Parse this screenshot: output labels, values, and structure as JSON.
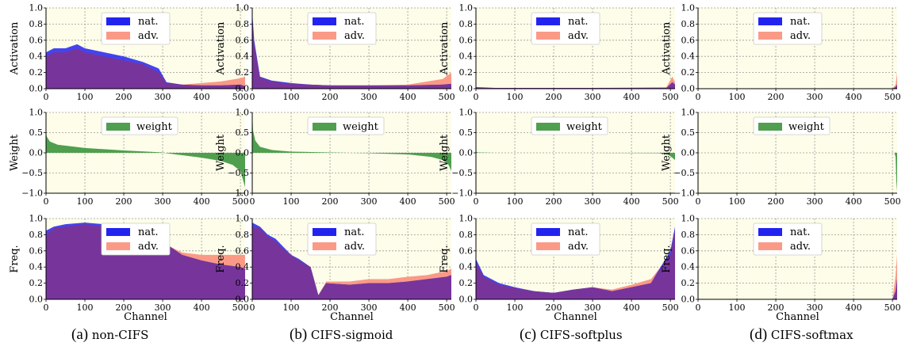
{
  "colors": {
    "plot_bg": "#fdfde9",
    "grid": "#9a9a9a",
    "nat": "#2323f0",
    "adv": "#fa9a86",
    "overlap": "#7d3594",
    "weight": "#4f9f4f"
  },
  "labels": {
    "activation": "Activation",
    "weight": "Weight",
    "freq": "Freq.",
    "channel": "Channel",
    "nat": "nat.",
    "adv": "adv.",
    "weight_legend": "weight"
  },
  "captions": [
    {
      "tag": "(a)",
      "name": "non-CIFS"
    },
    {
      "tag": "(b)",
      "name": "CIFS-sigmoid"
    },
    {
      "tag": "(c)",
      "name": "CIFS-softplus"
    },
    {
      "tag": "(d)",
      "name": "CIFS-softmax"
    }
  ],
  "chart_data": [
    {
      "type": "area",
      "panel": "a",
      "row": "activation",
      "xlim": [
        0,
        512
      ],
      "ylim": [
        0,
        1
      ],
      "x_ticks": [
        0,
        100,
        200,
        300,
        400,
        500
      ],
      "y_ticks": [
        "0.0",
        "0.2",
        "0.4",
        "0.6",
        "0.8",
        "1.0"
      ],
      "ylabel": "Activation",
      "grid": true,
      "legend": "top-center",
      "series": [
        {
          "name": "nat.",
          "x": [
            0,
            20,
            50,
            80,
            100,
            150,
            200,
            250,
            290,
            310,
            350,
            400,
            450,
            500,
            512
          ],
          "values": [
            0.45,
            0.5,
            0.5,
            0.55,
            0.5,
            0.45,
            0.4,
            0.33,
            0.25,
            0.08,
            0.05,
            0.04,
            0.04,
            0.05,
            0.03
          ]
        },
        {
          "name": "adv.",
          "x": [
            0,
            20,
            50,
            80,
            100,
            150,
            200,
            250,
            290,
            310,
            350,
            400,
            450,
            500,
            512
          ],
          "values": [
            0.4,
            0.45,
            0.45,
            0.5,
            0.45,
            0.4,
            0.35,
            0.3,
            0.2,
            0.07,
            0.05,
            0.07,
            0.09,
            0.13,
            0.15
          ]
        }
      ]
    },
    {
      "type": "area",
      "panel": "b",
      "row": "activation",
      "xlim": [
        0,
        512
      ],
      "ylim": [
        0,
        1
      ],
      "x_ticks": [
        0,
        100,
        200,
        300,
        400,
        500
      ],
      "y_ticks": [
        "0.0",
        "0.2",
        "0.4",
        "0.6",
        "0.8",
        "1.0"
      ],
      "ylabel": "Activation",
      "grid": true,
      "legend": "top-center",
      "series": [
        {
          "name": "nat.",
          "x": [
            0,
            5,
            20,
            50,
            100,
            150,
            200,
            300,
            400,
            490,
            512
          ],
          "values": [
            0.95,
            0.6,
            0.15,
            0.1,
            0.07,
            0.05,
            0.04,
            0.04,
            0.04,
            0.05,
            0.06
          ]
        },
        {
          "name": "adv.",
          "x": [
            0,
            5,
            20,
            50,
            100,
            150,
            200,
            300,
            400,
            490,
            512
          ],
          "values": [
            0.9,
            0.55,
            0.14,
            0.09,
            0.06,
            0.05,
            0.04,
            0.04,
            0.05,
            0.12,
            0.2
          ]
        }
      ]
    },
    {
      "type": "area",
      "panel": "c",
      "row": "activation",
      "xlim": [
        0,
        512
      ],
      "ylim": [
        0,
        1
      ],
      "x_ticks": [
        0,
        100,
        200,
        300,
        400,
        500
      ],
      "y_ticks": [
        "0.0",
        "0.2",
        "0.4",
        "0.6",
        "0.8",
        "1.0"
      ],
      "ylabel": "Activation",
      "grid": true,
      "legend": "top-center",
      "series": [
        {
          "name": "nat.",
          "x": [
            0,
            50,
            100,
            300,
            490,
            505,
            512
          ],
          "values": [
            0.02,
            0.01,
            0.01,
            0.01,
            0.01,
            0.08,
            0.05
          ]
        },
        {
          "name": "adv.",
          "x": [
            0,
            50,
            100,
            300,
            490,
            505,
            512
          ],
          "values": [
            0.01,
            0.01,
            0.01,
            0.01,
            0.02,
            0.15,
            0.08
          ]
        }
      ]
    },
    {
      "type": "area",
      "panel": "d",
      "row": "activation",
      "xlim": [
        0,
        512
      ],
      "ylim": [
        0,
        1
      ],
      "x_ticks": [
        0,
        100,
        200,
        300,
        400,
        500
      ],
      "y_ticks": [
        "0.0",
        "0.2",
        "0.4",
        "0.6",
        "0.8",
        "1.0"
      ],
      "ylabel": "Activation",
      "grid": true,
      "legend": "top-center",
      "series": [
        {
          "name": "nat.",
          "x": [
            0,
            500,
            508,
            512
          ],
          "values": [
            0.0,
            0.0,
            0.02,
            0.05
          ]
        },
        {
          "name": "adv.",
          "x": [
            0,
            500,
            508,
            512
          ],
          "values": [
            0.0,
            0.0,
            0.05,
            0.2
          ]
        }
      ]
    },
    {
      "type": "area",
      "panel": "a",
      "row": "weight",
      "xlim": [
        0,
        512
      ],
      "ylim": [
        -1,
        1
      ],
      "x_ticks": [
        0,
        100,
        200,
        300,
        400,
        500
      ],
      "y_ticks": [
        "−1.0",
        "−0.5",
        "0.0",
        "0.5",
        "1.0"
      ],
      "ylabel": "Weight",
      "grid": true,
      "legend": "top-center",
      "series": [
        {
          "name": "weight",
          "x": [
            0,
            2,
            10,
            30,
            100,
            200,
            300,
            310,
            350,
            400,
            450,
            480,
            500,
            512
          ],
          "values": [
            0.5,
            0.4,
            0.28,
            0.2,
            0.12,
            0.06,
            0.01,
            -0.01,
            -0.06,
            -0.12,
            -0.2,
            -0.3,
            -0.45,
            -0.85
          ]
        }
      ]
    },
    {
      "type": "area",
      "panel": "b",
      "row": "weight",
      "xlim": [
        0,
        512
      ],
      "ylim": [
        -1,
        1
      ],
      "x_ticks": [
        0,
        100,
        200,
        300,
        400,
        500
      ],
      "y_ticks": [
        "−1.0",
        "−0.5",
        "0.0",
        "0.5",
        "1.0"
      ],
      "ylabel": "Weight",
      "grid": true,
      "legend": "top-center",
      "series": [
        {
          "name": "weight",
          "x": [
            0,
            2,
            8,
            20,
            50,
            100,
            200,
            300,
            400,
            460,
            490,
            505,
            512
          ],
          "values": [
            1.0,
            0.55,
            0.3,
            0.15,
            0.07,
            0.03,
            0.01,
            -0.01,
            -0.04,
            -0.1,
            -0.18,
            -0.3,
            -0.45
          ]
        }
      ]
    },
    {
      "type": "area",
      "panel": "c",
      "row": "weight",
      "xlim": [
        0,
        512
      ],
      "ylim": [
        -1,
        1
      ],
      "x_ticks": [
        0,
        100,
        200,
        300,
        400,
        500
      ],
      "y_ticks": [
        "−1.0",
        "−0.5",
        "0.0",
        "0.5",
        "1.0"
      ],
      "ylabel": "Weight",
      "grid": true,
      "legend": "top-center",
      "series": [
        {
          "name": "weight",
          "x": [
            0,
            5,
            50,
            300,
            470,
            495,
            505,
            512
          ],
          "values": [
            0.03,
            0.01,
            0.0,
            0.0,
            -0.01,
            -0.05,
            -0.12,
            -0.18
          ]
        }
      ]
    },
    {
      "type": "area",
      "panel": "d",
      "row": "weight",
      "xlim": [
        0,
        512
      ],
      "ylim": [
        -1,
        1
      ],
      "x_ticks": [
        0,
        100,
        200,
        300,
        400,
        500
      ],
      "y_ticks": [
        "−1.0",
        "−0.5",
        "0.0",
        "0.5",
        "1.0"
      ],
      "ylabel": "Weight",
      "grid": true,
      "legend": "top-center",
      "series": [
        {
          "name": "weight",
          "x": [
            0,
            505,
            508,
            510,
            512
          ],
          "values": [
            0.0,
            0.0,
            -0.1,
            -0.7,
            -0.95
          ]
        }
      ]
    },
    {
      "type": "area",
      "panel": "a",
      "row": "freq",
      "xlim": [
        0,
        512
      ],
      "ylim": [
        0,
        1
      ],
      "x_ticks": [
        0,
        100,
        200,
        300,
        400,
        500
      ],
      "y_ticks": [
        "0.0",
        "0.2",
        "0.4",
        "0.6",
        "0.8",
        "1.0"
      ],
      "ylabel": "Freq.",
      "xlabel": "Channel",
      "grid": true,
      "legend": "top-center",
      "series": [
        {
          "name": "nat.",
          "x": [
            0,
            20,
            50,
            100,
            150,
            200,
            230,
            260,
            300,
            320,
            350,
            400,
            450,
            500,
            512
          ],
          "values": [
            0.85,
            0.9,
            0.93,
            0.95,
            0.93,
            0.9,
            0.85,
            0.8,
            0.75,
            0.65,
            0.55,
            0.48,
            0.43,
            0.4,
            0.38
          ]
        },
        {
          "name": "adv.",
          "x": [
            0,
            20,
            50,
            100,
            150,
            200,
            230,
            260,
            300,
            320,
            350,
            400,
            450,
            500,
            512
          ],
          "values": [
            0.8,
            0.88,
            0.9,
            0.93,
            0.9,
            0.87,
            0.83,
            0.78,
            0.72,
            0.65,
            0.58,
            0.55,
            0.55,
            0.55,
            0.55
          ]
        }
      ]
    },
    {
      "type": "area",
      "panel": "b",
      "row": "freq",
      "xlim": [
        0,
        512
      ],
      "ylim": [
        0,
        1
      ],
      "x_ticks": [
        0,
        100,
        200,
        300,
        400,
        500
      ],
      "y_ticks": [
        "0.0",
        "0.2",
        "0.4",
        "0.6",
        "0.8",
        "1.0"
      ],
      "ylabel": "Freq.",
      "xlabel": "Channel",
      "grid": true,
      "legend": "top-center",
      "series": [
        {
          "name": "nat.",
          "x": [
            0,
            20,
            40,
            60,
            80,
            100,
            120,
            150,
            170,
            190,
            250,
            300,
            350,
            400,
            450,
            500,
            512
          ],
          "values": [
            0.95,
            0.9,
            0.8,
            0.75,
            0.65,
            0.55,
            0.5,
            0.4,
            0.05,
            0.2,
            0.18,
            0.2,
            0.2,
            0.22,
            0.25,
            0.28,
            0.3
          ]
        },
        {
          "name": "adv.",
          "x": [
            0,
            20,
            40,
            60,
            80,
            100,
            120,
            150,
            170,
            190,
            250,
            300,
            350,
            400,
            450,
            500,
            512
          ],
          "values": [
            0.9,
            0.88,
            0.78,
            0.72,
            0.62,
            0.55,
            0.48,
            0.4,
            0.05,
            0.22,
            0.22,
            0.25,
            0.25,
            0.28,
            0.3,
            0.35,
            0.38
          ]
        }
      ]
    },
    {
      "type": "area",
      "panel": "c",
      "row": "freq",
      "xlim": [
        0,
        512
      ],
      "ylim": [
        0,
        1
      ],
      "x_ticks": [
        0,
        100,
        200,
        300,
        400,
        500
      ],
      "y_ticks": [
        "0.0",
        "0.2",
        "0.4",
        "0.6",
        "0.8",
        "1.0"
      ],
      "ylabel": "Freq.",
      "xlabel": "Channel",
      "grid": true,
      "legend": "top-center",
      "series": [
        {
          "name": "nat.",
          "x": [
            0,
            20,
            60,
            100,
            150,
            200,
            250,
            300,
            350,
            400,
            450,
            500,
            512
          ],
          "values": [
            0.5,
            0.3,
            0.2,
            0.15,
            0.1,
            0.08,
            0.12,
            0.15,
            0.1,
            0.15,
            0.2,
            0.6,
            0.9
          ]
        },
        {
          "name": "adv.",
          "x": [
            0,
            20,
            60,
            100,
            150,
            200,
            250,
            300,
            350,
            400,
            450,
            500,
            512
          ],
          "values": [
            0.45,
            0.28,
            0.18,
            0.14,
            0.1,
            0.08,
            0.12,
            0.15,
            0.12,
            0.18,
            0.25,
            0.55,
            0.85
          ]
        }
      ]
    },
    {
      "type": "area",
      "panel": "d",
      "row": "freq",
      "xlim": [
        0,
        512
      ],
      "ylim": [
        0,
        1
      ],
      "x_ticks": [
        0,
        100,
        200,
        300,
        400,
        500
      ],
      "y_ticks": [
        "0.0",
        "0.2",
        "0.4",
        "0.6",
        "0.8",
        "1.0"
      ],
      "ylabel": "Freq.",
      "xlabel": "Channel",
      "grid": true,
      "legend": "top-center",
      "series": [
        {
          "name": "nat.",
          "x": [
            0,
            500,
            508,
            512
          ],
          "values": [
            0.0,
            0.0,
            0.1,
            0.25
          ]
        },
        {
          "name": "adv.",
          "x": [
            0,
            500,
            508,
            512
          ],
          "values": [
            0.0,
            0.0,
            0.3,
            0.55
          ]
        }
      ]
    }
  ]
}
